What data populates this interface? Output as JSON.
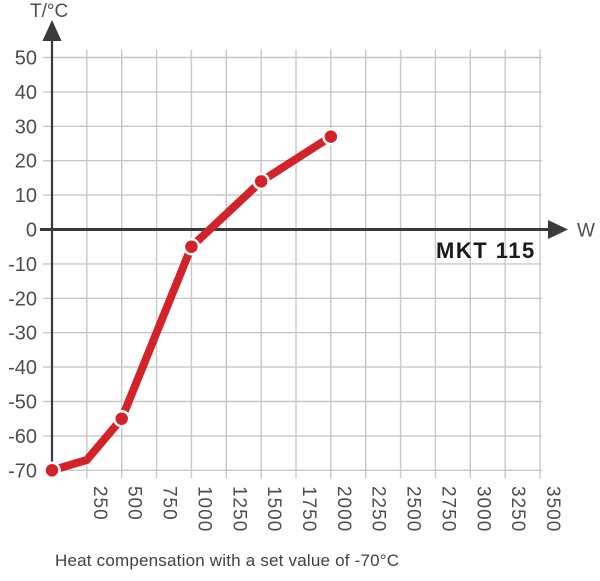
{
  "chart_data": {
    "type": "line",
    "title": "",
    "xlabel": "W",
    "ylabel": "T/°C",
    "xlim": [
      0,
      3500
    ],
    "ylim": [
      -70,
      50
    ],
    "x_ticks": [
      250,
      500,
      750,
      1000,
      1250,
      1500,
      1750,
      2000,
      2250,
      2500,
      2750,
      3000,
      3250,
      3500
    ],
    "y_ticks": [
      50,
      40,
      30,
      20,
      10,
      0,
      -10,
      -20,
      -30,
      -40,
      -50,
      -60,
      -70
    ],
    "grid": true,
    "legend_position": "none",
    "series": [
      {
        "name": "MKT 115",
        "color": "#d2232a",
        "points": [
          [
            0,
            -70
          ],
          [
            250,
            -67
          ],
          [
            500,
            -55
          ],
          [
            1000,
            -5
          ],
          [
            1500,
            14
          ],
          [
            2000,
            27
          ]
        ],
        "marker_points": [
          [
            0,
            -70
          ],
          [
            500,
            -55
          ],
          [
            1000,
            -5
          ],
          [
            1500,
            14
          ],
          [
            2000,
            27
          ]
        ]
      }
    ],
    "annotation": "MKT 115",
    "caption": "Heat compensation with a set value of -70°C"
  },
  "colors": {
    "grid": "#c8c8c8",
    "axis": "#3a3a3a",
    "tick_label": "#4d4d4d",
    "axis_label": "#4d4d4d",
    "series": "#d2232a",
    "marker_halo": "#ffffff",
    "annotation": "#1a1a1a",
    "caption": "#414141",
    "background": "#ffffff"
  }
}
